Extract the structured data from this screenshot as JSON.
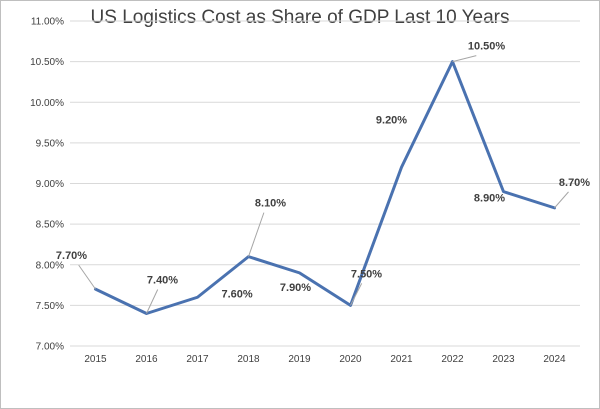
{
  "chart_data": {
    "type": "line",
    "title": "US Logistics Cost as Share of GDP Last 10 Years",
    "xlabel": "",
    "ylabel": "",
    "categories": [
      "2015",
      "2016",
      "2017",
      "2018",
      "2019",
      "2020",
      "2021",
      "2022",
      "2023",
      "2024"
    ],
    "series": [
      {
        "values": [
          7.7,
          7.4,
          7.6,
          8.1,
          7.9,
          7.5,
          9.2,
          10.5,
          8.9,
          8.7
        ],
        "data_labels": [
          "7.70%",
          "7.40%",
          "7.60%",
          "8.10%",
          "7.90%",
          "7.50%",
          "9.20%",
          "10.50%",
          "8.90%",
          "8.70%"
        ],
        "color": "#4a72b0"
      }
    ],
    "ylim": [
      7.0,
      11.0
    ],
    "ytick_labels": [
      "7.00%",
      "7.50%",
      "8.00%",
      "8.50%",
      "9.00%",
      "9.50%",
      "10.00%",
      "10.50%",
      "11.00%"
    ],
    "grid": true,
    "legend": "none",
    "gridline_color": "#d9d9d9"
  }
}
